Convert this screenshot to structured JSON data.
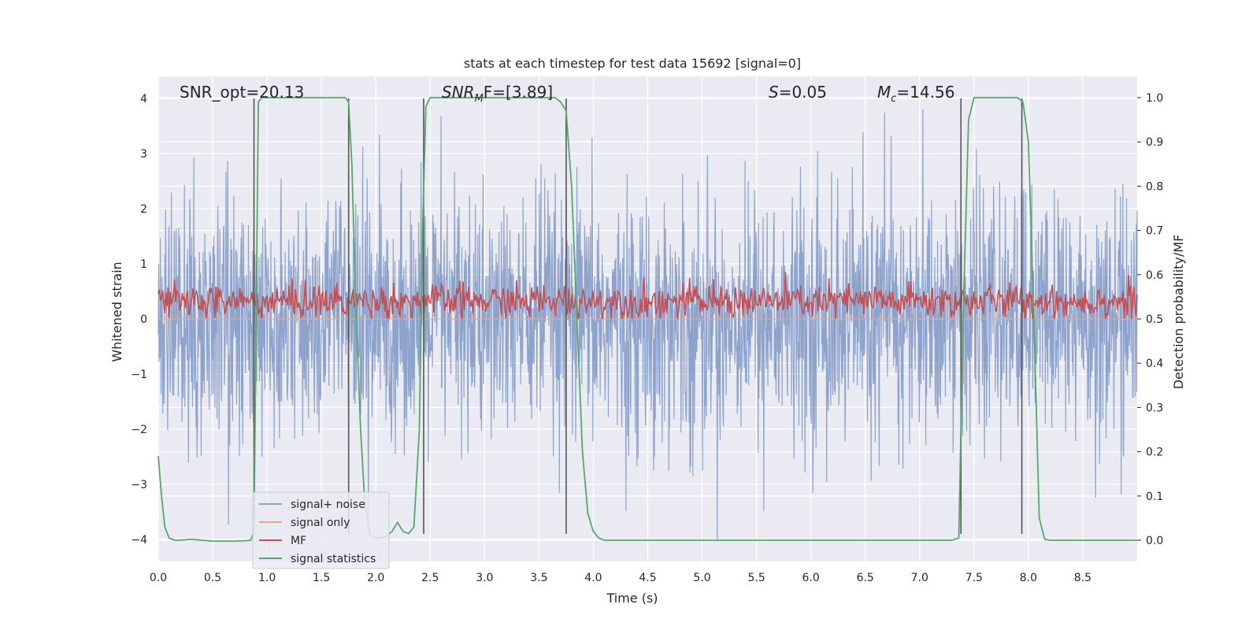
{
  "chart_data": {
    "type": "line",
    "title": "stats at each timestep for test data 15692 [signal=0]",
    "xlabel": "Time (s)",
    "ylabel": "Whitened strain",
    "y2label": "Detection probability/MF",
    "xlim": [
      0.0,
      9.0
    ],
    "ylim": [
      -4.4,
      4.4
    ],
    "y2lim": [
      -0.048,
      1.048
    ],
    "xticks": [
      0.0,
      0.5,
      1.0,
      1.5,
      2.0,
      2.5,
      3.0,
      3.5,
      4.0,
      4.5,
      5.0,
      5.5,
      6.0,
      6.5,
      7.0,
      7.5,
      8.0,
      8.5
    ],
    "xtick_labels": [
      "0.0",
      "0.5",
      "1.0",
      "1.5",
      "2.0",
      "2.5",
      "3.0",
      "3.5",
      "4.0",
      "4.5",
      "5.0",
      "5.5",
      "6.0",
      "6.5",
      "7.0",
      "7.5",
      "8.0",
      "8.5"
    ],
    "yticks": [
      4,
      3,
      2,
      1,
      0,
      -1,
      -2,
      -3,
      -4
    ],
    "ytick_labels": [
      "4",
      "3",
      "2",
      "1",
      "0",
      "−1",
      "−2",
      "−3",
      "−4"
    ],
    "y2ticks": [
      1.0,
      0.9,
      0.8,
      0.7,
      0.6,
      0.5,
      0.4,
      0.3,
      0.2,
      0.1,
      0.0
    ],
    "y2tick_labels": [
      "1.0",
      "0.9",
      "0.8",
      "0.7",
      "0.6",
      "0.5",
      "0.4",
      "0.3",
      "0.2",
      "0.1",
      "0.0"
    ],
    "annotations": {
      "snr_opt": "SNR_opt=20.13",
      "snr_mf_base": "SNR",
      "snr_mf_sub": "M",
      "snr_mf_tail": "F=[3.89]",
      "s_var": "S",
      "s_val": "=0.05",
      "mc_var": "M",
      "mc_sub": "c",
      "mc_val": "=14.56"
    },
    "vlines": [
      0.88,
      1.75,
      2.44,
      3.75,
      7.38,
      7.94
    ],
    "noise_series": {
      "name": "signal+ noise",
      "color": "#8ea3cc",
      "range": [
        -4.0,
        4.0
      ],
      "upper_typical": 2.2,
      "lower_typical": -2.2
    },
    "signal_only": {
      "name": "signal only",
      "color": "#e8a58a",
      "values": "zero"
    },
    "mf_series": {
      "name": "MF",
      "color": "#c44e52",
      "axis": "right",
      "mean": 0.54,
      "min": 0.5,
      "max": 0.62
    },
    "stat_series": {
      "name": "signal statistics",
      "color": "#55a868",
      "axis": "right",
      "x": [
        0.0,
        0.03,
        0.06,
        0.1,
        0.15,
        0.2,
        0.3,
        0.4,
        0.5,
        0.6,
        0.7,
        0.8,
        0.85,
        0.88,
        0.9,
        0.92,
        0.95,
        1.0,
        1.1,
        1.2,
        1.3,
        1.4,
        1.5,
        1.6,
        1.7,
        1.72,
        1.75,
        1.78,
        1.82,
        1.86,
        1.9,
        1.95,
        2.0,
        2.05,
        2.1,
        2.15,
        2.2,
        2.25,
        2.3,
        2.35,
        2.4,
        2.43,
        2.46,
        2.5,
        2.55,
        2.6,
        2.7,
        3.0,
        3.3,
        3.5,
        3.6,
        3.65,
        3.7,
        3.75,
        3.8,
        3.85,
        3.9,
        3.95,
        4.0,
        4.05,
        4.1,
        4.2,
        5.0,
        6.0,
        7.0,
        7.3,
        7.36,
        7.4,
        7.45,
        7.5,
        7.55,
        7.6,
        7.7,
        7.8,
        7.9,
        7.95,
        8.0,
        8.05,
        8.1,
        8.15,
        8.2,
        8.3,
        8.6,
        9.0
      ],
      "values": [
        0.19,
        0.1,
        0.03,
        0.005,
        0.0,
        0.0,
        0.002,
        0.0,
        -0.002,
        -0.002,
        -0.002,
        -0.001,
        0.0,
        0.02,
        0.5,
        0.99,
        1.0,
        1.0,
        1.0,
        1.0,
        1.0,
        1.0,
        1.0,
        1.0,
        1.0,
        1.0,
        0.99,
        0.85,
        0.5,
        0.25,
        0.08,
        0.01,
        0.005,
        0.005,
        0.01,
        0.02,
        0.04,
        0.02,
        0.015,
        0.03,
        0.25,
        0.7,
        0.98,
        1.0,
        1.0,
        1.0,
        1.0,
        1.0,
        1.0,
        1.0,
        1.0,
        1.0,
        0.99,
        0.97,
        0.8,
        0.5,
        0.2,
        0.06,
        0.02,
        0.005,
        0.0,
        0.0,
        0.0,
        0.0,
        0.0,
        0.0,
        0.005,
        0.5,
        0.95,
        1.0,
        1.0,
        1.0,
        1.0,
        1.0,
        1.0,
        0.99,
        0.9,
        0.5,
        0.05,
        0.002,
        0.0,
        0.0,
        0.0,
        0.0
      ]
    },
    "legend": {
      "placement": "lower-left",
      "entries": [
        {
          "label": "signal+ noise",
          "color": "#8ea3cc"
        },
        {
          "label": "signal only",
          "color": "#e8a58a"
        },
        {
          "label": "MF",
          "color": "#c44e52"
        },
        {
          "label": "signal statistics",
          "color": "#55a868"
        }
      ]
    },
    "colors": {
      "plot_bg": "#eaeaf2",
      "grid": "#ffffff",
      "vline": "#555555"
    }
  }
}
